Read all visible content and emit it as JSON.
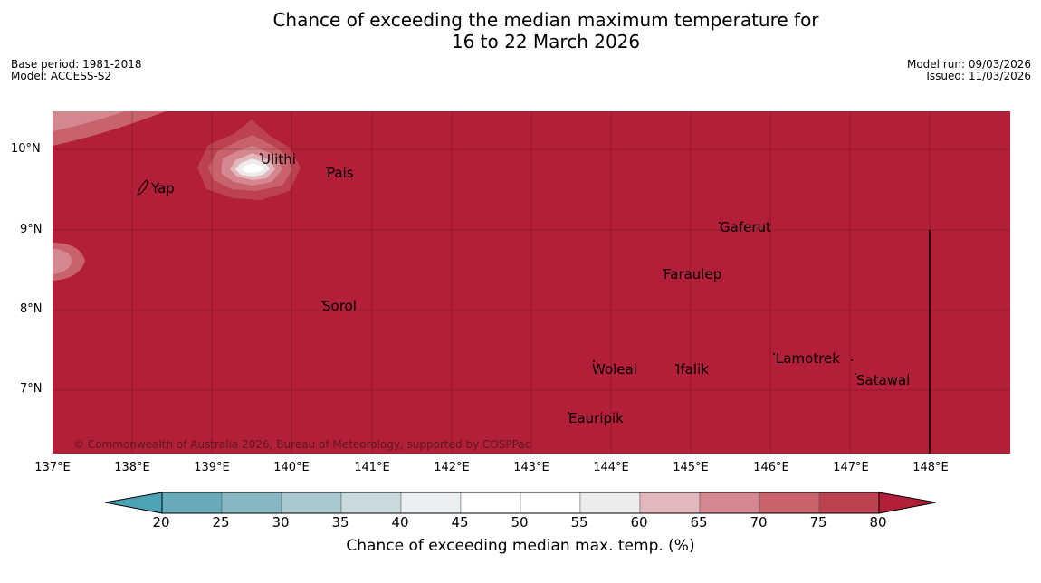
{
  "title_line1": "Chance of exceeding the median maximum temperature for",
  "title_line2": "16 to 22 March 2026",
  "base_period": "Base period: 1981-2018",
  "model": "Model: ACCESS-S2",
  "model_run": "Model run: 09/03/2026",
  "issued": "Issued: 11/03/2026",
  "copyright": "© Commonwealth of Australia 2026, Bureau of Meteorology, supported by COSPPac",
  "lat_labels": [
    "10°N",
    "9°N",
    "8°N",
    "7°N"
  ],
  "lon_labels": [
    "137°E",
    "138°E",
    "139°E",
    "140°E",
    "141°E",
    "142°E",
    "143°E",
    "144°E",
    "145°E",
    "146°E",
    "147°E",
    "148°E"
  ],
  "places": [
    "Ulithi",
    "Yap",
    "Pais",
    "Gaferut",
    "Faraulep",
    "Sorol",
    "Lamotrek",
    "Woleai",
    "Ifalik",
    "Satawal",
    "Eauripik"
  ],
  "colorbar": {
    "label": "Chance of exceeding median max. temp. (%)",
    "ticks": [
      "20",
      "25",
      "30",
      "35",
      "40",
      "45",
      "50",
      "55",
      "60",
      "65",
      "70",
      "75",
      "80"
    ],
    "colors": [
      "#67abbb",
      "#88b7c4",
      "#a8c9d0",
      "#c9dadd",
      "#eaf0f1",
      "#ffffff",
      "#ffffff",
      "#ececec",
      "#e2b7bd",
      "#d4878f",
      "#c8636d",
      "#bc4250"
    ],
    "under_color": "#4da3b3",
    "over_color": "#b31e38"
  },
  "map_fill_color": "#b31e38"
}
